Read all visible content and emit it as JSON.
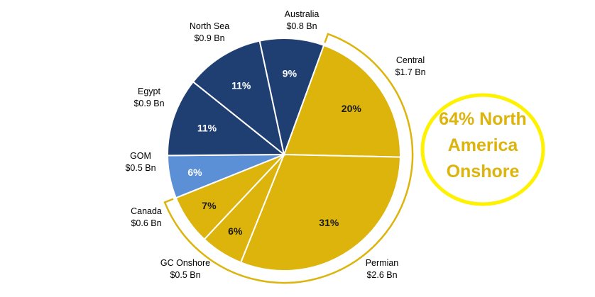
{
  "chart_data": {
    "type": "pie",
    "title": "",
    "slices": [
      {
        "name": "Central",
        "amount": "$1.7 Bn",
        "value": 20,
        "pct_label": "20%",
        "group": "north-america-onshore"
      },
      {
        "name": "Permian",
        "amount": "$2.6 Bn",
        "value": 31,
        "pct_label": "31%",
        "group": "north-america-onshore"
      },
      {
        "name": "GC Onshore",
        "amount": "$0.5 Bn",
        "value": 6,
        "pct_label": "6%",
        "group": "north-america-onshore"
      },
      {
        "name": "Canada",
        "amount": "$0.6 Bn",
        "value": 7,
        "pct_label": "7%",
        "group": "north-america-onshore"
      },
      {
        "name": "GOM",
        "amount": "$0.5 Bn",
        "value": 6,
        "pct_label": "6%",
        "group": "gom"
      },
      {
        "name": "Egypt",
        "amount": "$0.9 Bn",
        "value": 11,
        "pct_label": "11%",
        "group": "international"
      },
      {
        "name": "North Sea",
        "amount": "$0.9 Bn",
        "value": 11,
        "pct_label": "11%",
        "group": "international"
      },
      {
        "name": "Australia",
        "amount": "$0.8 Bn",
        "value": 9,
        "pct_label": "9%",
        "group": "international"
      }
    ],
    "colors": {
      "north-america-onshore": "#DDB40C",
      "gom": "#5B8FD6",
      "international": "#1F3F73",
      "pct_text_on_gold": "#1a1a1a",
      "pct_text_on_blue": "#ffffff",
      "bracket": "#DDB40C",
      "callout_ring": "#FFF200",
      "callout_text": "#DDB40C"
    }
  },
  "callout": {
    "lines": [
      "64% North",
      "America",
      "Onshore"
    ]
  }
}
